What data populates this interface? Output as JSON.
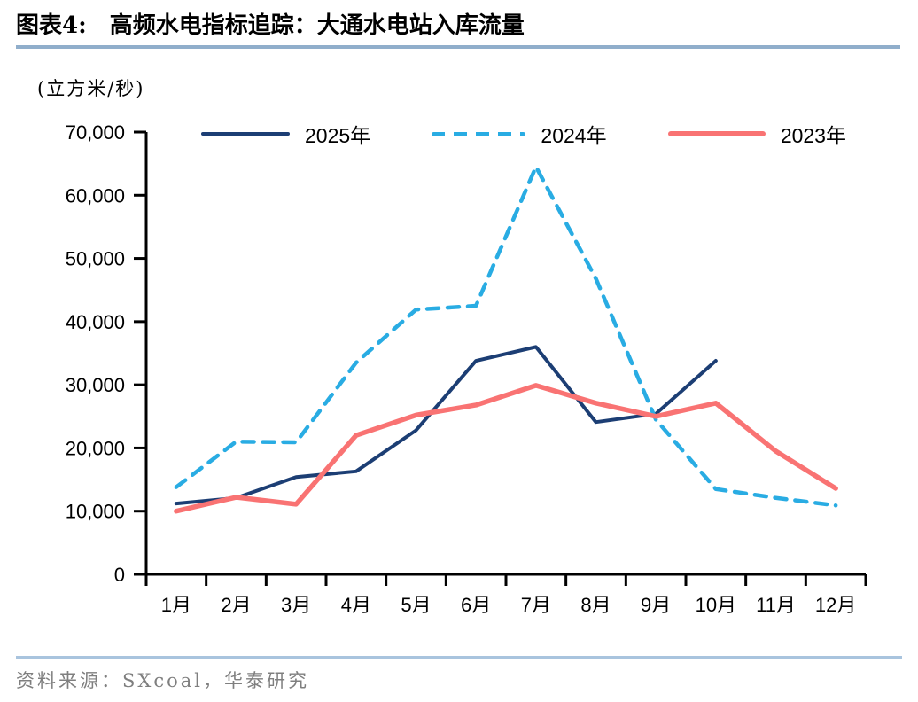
{
  "header": {
    "figure_label": "图表4:",
    "title": "高频水电指标追踪：大通水电站入库流量"
  },
  "unit_label": "(立方米/秒)",
  "source": "资料来源：SXcoal，华泰研究",
  "colors": {
    "navy": "#1c3e74",
    "cyan": "#29ace3",
    "red": "#f97373",
    "axis": "#000000",
    "rule_top": "#90aecb",
    "rule_bottom": "#a9c4de",
    "source_text": "#7f7f7f"
  },
  "chart_data": {
    "type": "line",
    "title": "高频水电指标追踪：大通水电站入库流量",
    "xlabel": "",
    "ylabel": "立方米/秒",
    "categories": [
      "1月",
      "2月",
      "3月",
      "4月",
      "5月",
      "6月",
      "7月",
      "8月",
      "9月",
      "10月",
      "11月",
      "12月"
    ],
    "series": [
      {
        "name": "2025年",
        "color_key": "navy",
        "style": "solid",
        "values": [
          11200,
          12100,
          15400,
          16300,
          22800,
          33800,
          36000,
          24100,
          25400,
          33800
        ]
      },
      {
        "name": "2024年",
        "color_key": "cyan",
        "style": "dashed",
        "values": [
          13800,
          21000,
          20900,
          33500,
          41900,
          42500,
          64500,
          46800,
          24500,
          13500,
          12100,
          10900
        ]
      },
      {
        "name": "2023年",
        "color_key": "red",
        "style": "solid",
        "values": [
          10000,
          12200,
          11100,
          22000,
          25200,
          26800,
          29900,
          27100,
          25000,
          27100,
          19500,
          13600
        ]
      }
    ],
    "ylim": [
      0,
      70000
    ],
    "ytick_step": 10000,
    "ytick_labels": [
      "0",
      "10,000",
      "20,000",
      "30,000",
      "40,000",
      "50,000",
      "60,000",
      "70,000"
    ],
    "legend_position": "top",
    "grid": false
  }
}
